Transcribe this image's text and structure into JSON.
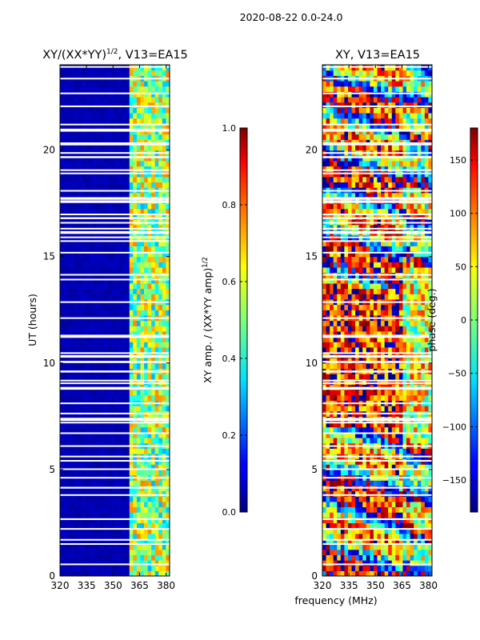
{
  "suptitle": "2020-08-22 0.0-24.0",
  "shared_xlabel": "frequency (MHz)",
  "chart_data": [
    {
      "type": "heatmap",
      "title_main": "XY/(XX*YY)",
      "title_sup": "1/2",
      "title_tail": ", V13=EA15",
      "xlim": [
        320,
        382
      ],
      "ylim": [
        0,
        24
      ],
      "xticks": [
        "320",
        "335",
        "350",
        "365",
        "380"
      ],
      "xtick_values": [
        320,
        335,
        350,
        365,
        380
      ],
      "yticks": [
        "0",
        "5",
        "10",
        "15",
        "20"
      ],
      "ytick_values": [
        0,
        5,
        10,
        15,
        20
      ],
      "ylabel": "UT (hours)",
      "colorbar": {
        "label_main": "XY amp. / (XX*YY amp)",
        "label_sup": "1/2",
        "range": [
          0.0,
          1.0
        ],
        "ticks": [
          "0.0",
          "0.2",
          "0.4",
          "0.6",
          "0.8",
          "1.0"
        ],
        "tick_values": [
          0.0,
          0.2,
          0.4,
          0.6,
          0.8,
          1.0
        ]
      },
      "description_regions": [
        {
          "freq": [
            320,
            360
          ],
          "value": 0.03
        },
        {
          "freq": [
            360,
            382
          ],
          "value": 0.45
        }
      ],
      "flagged_hours": [
        7.2,
        7.35,
        17.6,
        17.7,
        16.1,
        15.9,
        1.5,
        1.7
      ]
    },
    {
      "type": "heatmap",
      "title_main": "XY, V13=EA15",
      "xlim": [
        320,
        382
      ],
      "ylim": [
        0,
        24
      ],
      "xticks": [
        "320",
        "335",
        "350",
        "365",
        "380"
      ],
      "xtick_values": [
        320,
        335,
        350,
        365,
        380
      ],
      "yticks": [
        "0",
        "5",
        "10",
        "15",
        "20"
      ],
      "ytick_values": [
        0,
        5,
        10,
        15,
        20
      ],
      "colorbar": {
        "label_main": "phase (deg.)",
        "range": [
          -180,
          180
        ],
        "ticks": [
          "150",
          "100",
          "50",
          "0",
          "−50",
          "−100",
          "−150"
        ],
        "tick_values": [
          150,
          100,
          50,
          0,
          -50,
          -100,
          -150
        ]
      },
      "flagged_hours": [
        7.2,
        7.35,
        17.6,
        17.7,
        16.1,
        15.9,
        1.5,
        1.7
      ]
    }
  ]
}
